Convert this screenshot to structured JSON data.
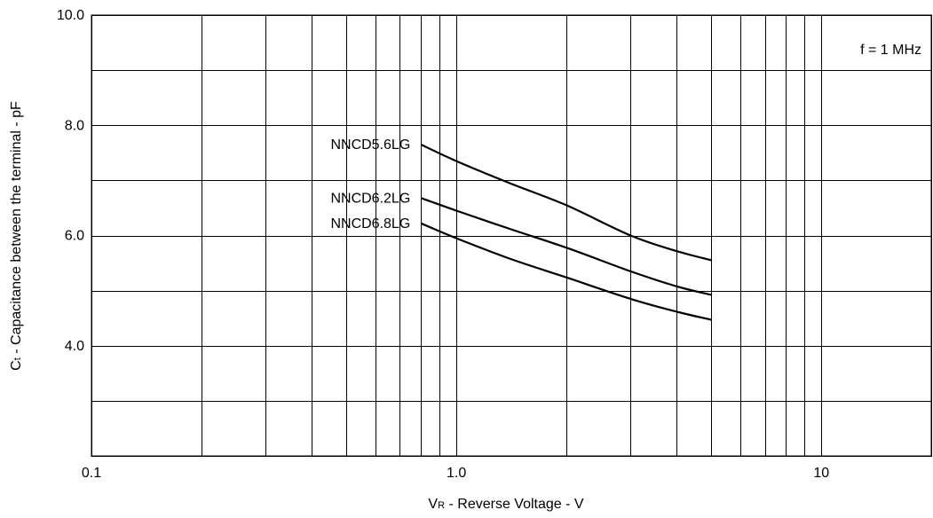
{
  "chart_data": {
    "type": "line",
    "x_scale": "log",
    "xlim": [
      0.1,
      20
    ],
    "ylim": [
      2.0,
      10.0
    ],
    "grid": true,
    "x_ticks": [
      {
        "value": 0.1,
        "label": "0.1"
      },
      {
        "value": 1,
        "label": "1.0"
      },
      {
        "value": 10,
        "label": "10"
      }
    ],
    "x_minor_ticks": [
      0.2,
      0.3,
      0.4,
      0.5,
      0.6,
      0.7,
      0.8,
      0.9,
      2,
      3,
      4,
      5,
      6,
      7,
      8,
      9
    ],
    "y_ticks": [
      {
        "value": 4.0,
        "label": "4.0"
      },
      {
        "value": 6.0,
        "label": "6.0"
      },
      {
        "value": 8.0,
        "label": "8.0"
      },
      {
        "value": 10.0,
        "label": "10.0"
      }
    ],
    "y_grid": [
      3,
      4,
      5,
      6,
      7,
      8,
      9,
      10
    ],
    "xlabel": {
      "main": "V",
      "sub": "R",
      "rest": " - Reverse Voltage - V"
    },
    "ylabel": {
      "main": "C",
      "sub": "t",
      "rest": " - Capacitance between the terminal - pF"
    },
    "annotation": "f = 1 MHz",
    "series": [
      {
        "name": "NNCD5.6LG",
        "x": [
          0.8,
          1.0,
          1.4,
          2.0,
          3.0,
          4.0,
          5.0
        ],
        "y": [
          7.65,
          7.35,
          6.95,
          6.55,
          6.0,
          5.72,
          5.55
        ]
      },
      {
        "name": "NNCD6.2LG",
        "x": [
          0.8,
          1.0,
          1.4,
          2.0,
          3.0,
          4.0,
          5.0
        ],
        "y": [
          6.68,
          6.45,
          6.12,
          5.78,
          5.35,
          5.08,
          4.92
        ]
      },
      {
        "name": "NNCD6.8LG",
        "x": [
          0.8,
          1.0,
          1.4,
          2.0,
          3.0,
          4.0,
          5.0
        ],
        "y": [
          6.22,
          5.95,
          5.58,
          5.24,
          4.85,
          4.62,
          4.47
        ]
      }
    ]
  }
}
